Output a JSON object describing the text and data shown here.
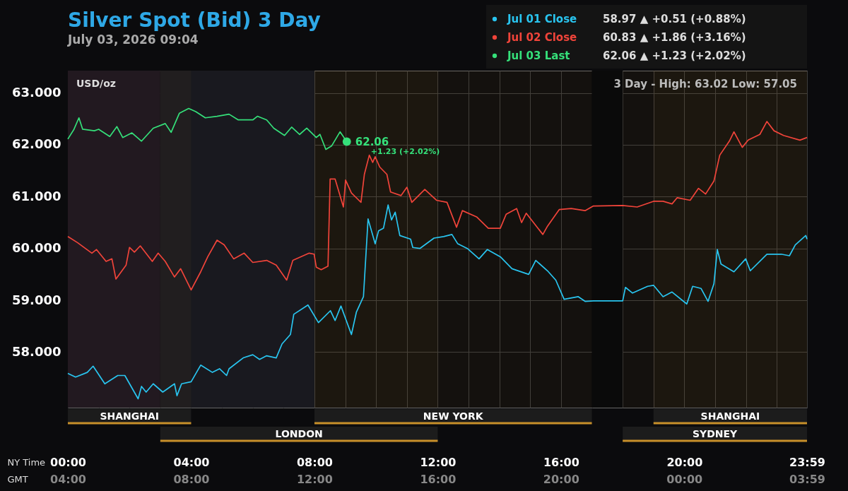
{
  "chart_data": {
    "type": "line",
    "title": "Silver Spot (Bid) 3 Day",
    "subtitle": "July 03, 2026 09:04",
    "ylabel": "USD/oz",
    "xlabel": "NY Time",
    "x2label": "GMT",
    "xlim": [
      0,
      23.98
    ],
    "xticks": [
      {
        "value": 0,
        "label": "00:00"
      },
      {
        "value": 1,
        "label": null
      },
      {
        "value": 2,
        "label": null
      },
      {
        "value": 3,
        "label": null
      },
      {
        "value": 4,
        "label": "04:00"
      },
      {
        "value": 5,
        "label": null
      },
      {
        "value": 6,
        "label": null
      },
      {
        "value": 7,
        "label": null
      },
      {
        "value": 8,
        "label": "08:00"
      },
      {
        "value": 9,
        "label": null
      },
      {
        "value": 10,
        "label": null
      },
      {
        "value": 11,
        "label": null
      },
      {
        "value": 12,
        "label": "12:00"
      },
      {
        "value": 13,
        "label": null
      },
      {
        "value": 14,
        "label": null
      },
      {
        "value": 15,
        "label": null
      },
      {
        "value": 16,
        "label": "16:00"
      },
      {
        "value": 17,
        "label": null
      },
      {
        "value": 18,
        "label": null
      },
      {
        "value": 19,
        "label": null
      },
      {
        "value": 20,
        "label": "20:00"
      },
      {
        "value": 21,
        "label": null
      },
      {
        "value": 22,
        "label": null
      },
      {
        "value": 23,
        "label": null
      },
      {
        "value": 23.98,
        "label": "23:59"
      }
    ],
    "x2lim": [
      "2026-07-03T04:00",
      "2026-07-04T03:59"
    ],
    "x2ticks": [
      {
        "value": "2026-07-03T04:00",
        "label": "04:00"
      },
      {
        "value": "2026-07-03T08:00",
        "label": "08:00"
      },
      {
        "value": "2026-07-03T12:00",
        "label": "12:00"
      },
      {
        "value": "2026-07-03T16:00",
        "label": "16:00"
      },
      {
        "value": "2026-07-03T20:00",
        "label": "20:00"
      },
      {
        "value": "2026-07-04T00:00",
        "label": "00:00"
      },
      {
        "value": "2026-07-04T03:59",
        "label": "03:59"
      }
    ],
    "ylim": [
      56.93,
      63.43
    ],
    "yticks": [
      {
        "value": 58,
        "label": "58.000"
      },
      {
        "value": 59,
        "label": "59.000"
      },
      {
        "value": 60,
        "label": "60.000"
      },
      {
        "value": 61,
        "label": "61.000"
      },
      {
        "value": 62,
        "label": "62.000"
      },
      {
        "value": 63,
        "label": "63.000"
      }
    ],
    "grid": true,
    "legend": "top right",
    "marker": "none",
    "line_style": "solid",
    "series": [
      {
        "name": "Jul 01 Close",
        "color": "#29c5f0",
        "x": [
          0,
          0.25,
          0.63,
          0.82,
          1.2,
          1.62,
          1.85,
          2.28,
          2.39,
          2.54,
          2.77,
          3.08,
          3.46,
          3.54,
          3.69,
          4.0,
          4.31,
          4.69,
          4.92,
          5.15,
          5.23,
          5.69,
          6.0,
          6.22,
          6.45,
          6.76,
          6.95,
          7.22,
          7.33,
          7.79,
          8.13,
          8.52,
          8.67,
          8.86,
          9.2,
          9.36,
          9.59,
          9.74,
          9.97,
          10.08,
          10.24,
          10.39,
          10.5,
          10.62,
          10.77,
          11.12,
          11.19,
          11.42,
          11.88,
          12.19,
          12.46,
          12.65,
          12.96,
          13.34,
          13.61,
          14.03,
          14.41,
          14.95,
          15.18,
          15.56,
          15.83,
          16.1,
          16.56,
          16.78,
          17.05,
          18.0,
          18.09,
          18.32,
          18.81,
          19.0,
          19.31,
          19.6,
          20.08,
          20.27,
          20.54,
          20.77,
          20.96,
          21.07,
          21.19,
          21.61,
          21.99,
          22.14,
          22.68,
          23.14,
          23.41,
          23.6,
          23.94,
          23.98
        ],
        "values": [
          57.59,
          57.52,
          57.61,
          57.73,
          57.39,
          57.55,
          57.55,
          57.1,
          57.34,
          57.23,
          57.39,
          57.23,
          57.39,
          57.16,
          57.39,
          57.43,
          57.75,
          57.61,
          57.68,
          57.55,
          57.68,
          57.89,
          57.95,
          57.86,
          57.93,
          57.89,
          58.16,
          58.34,
          58.73,
          58.91,
          58.57,
          58.8,
          58.61,
          58.89,
          58.34,
          58.77,
          59.07,
          60.57,
          60.09,
          60.34,
          60.39,
          60.84,
          60.55,
          60.7,
          60.25,
          60.18,
          60.02,
          60.0,
          60.2,
          60.23,
          60.27,
          60.09,
          60.0,
          59.8,
          59.98,
          59.84,
          59.61,
          59.5,
          59.77,
          59.57,
          59.39,
          59.02,
          59.07,
          58.98,
          58.99,
          58.99,
          59.25,
          59.14,
          59.27,
          59.29,
          59.07,
          59.16,
          58.93,
          59.27,
          59.23,
          58.98,
          59.32,
          59.98,
          59.7,
          59.55,
          59.8,
          59.57,
          59.89,
          59.89,
          59.86,
          60.07,
          60.25,
          60.18
        ]
      },
      {
        "name": "Jul 02 Close",
        "color": "#f0443a",
        "x": [
          0,
          0.32,
          0.78,
          0.93,
          1.24,
          1.43,
          1.56,
          1.89,
          2.0,
          2.16,
          2.35,
          2.74,
          2.93,
          3.16,
          3.46,
          3.66,
          4.0,
          4.31,
          4.54,
          4.84,
          5.07,
          5.38,
          5.72,
          6.0,
          6.45,
          6.76,
          7.1,
          7.3,
          7.83,
          7.99,
          8.06,
          8.22,
          8.44,
          8.51,
          8.67,
          8.94,
          9.01,
          9.2,
          9.51,
          9.62,
          9.78,
          9.89,
          9.97,
          10.12,
          10.35,
          10.47,
          10.81,
          11.0,
          11.16,
          11.58,
          11.96,
          12.3,
          12.61,
          12.8,
          13.26,
          13.64,
          14.03,
          14.22,
          14.56,
          14.72,
          14.87,
          15.41,
          15.56,
          15.94,
          16.33,
          16.78,
          17.05,
          18.0,
          18.47,
          19.0,
          19.31,
          19.6,
          19.77,
          20.19,
          20.46,
          20.69,
          20.96,
          21.15,
          21.46,
          21.61,
          21.88,
          22.07,
          22.45,
          22.68,
          22.91,
          23.22,
          23.75,
          23.98
        ],
        "values": [
          60.23,
          60.11,
          59.91,
          59.98,
          59.75,
          59.8,
          59.41,
          59.68,
          60.02,
          59.93,
          60.05,
          59.75,
          59.91,
          59.75,
          59.45,
          59.61,
          59.2,
          59.55,
          59.84,
          60.16,
          60.07,
          59.8,
          59.91,
          59.73,
          59.77,
          59.68,
          59.39,
          59.77,
          59.91,
          59.89,
          59.64,
          59.59,
          59.66,
          61.34,
          61.34,
          60.8,
          61.32,
          61.07,
          60.89,
          61.43,
          61.8,
          61.66,
          61.77,
          61.57,
          61.43,
          61.09,
          61.02,
          61.18,
          60.89,
          61.14,
          60.93,
          60.89,
          60.41,
          60.73,
          60.61,
          60.39,
          60.39,
          60.66,
          60.77,
          60.5,
          60.68,
          60.27,
          60.43,
          60.75,
          60.77,
          60.73,
          60.82,
          60.83,
          60.8,
          60.91,
          60.91,
          60.86,
          60.98,
          60.93,
          61.16,
          61.05,
          61.3,
          61.8,
          62.07,
          62.25,
          61.95,
          62.09,
          62.2,
          62.45,
          62.27,
          62.18,
          62.09,
          62.14
        ]
      },
      {
        "name": "Jul 03 Last",
        "color": "#35e07a",
        "x": [
          0,
          0.2,
          0.36,
          0.48,
          0.86,
          1.0,
          1.36,
          1.59,
          1.78,
          2.08,
          2.39,
          2.77,
          3.16,
          3.35,
          3.62,
          3.92,
          4.15,
          4.46,
          4.84,
          5.23,
          5.53,
          6.0,
          6.15,
          6.45,
          6.68,
          7.03,
          7.26,
          7.52,
          7.75,
          8.06,
          8.18,
          8.37,
          8.56,
          8.83,
          9.05
        ],
        "values": [
          62.11,
          62.3,
          62.52,
          62.3,
          62.27,
          62.3,
          62.16,
          62.35,
          62.14,
          62.23,
          62.07,
          62.32,
          62.41,
          62.24,
          62.61,
          62.7,
          62.64,
          62.52,
          62.55,
          62.59,
          62.48,
          62.48,
          62.55,
          62.48,
          62.32,
          62.18,
          62.34,
          62.2,
          62.32,
          62.14,
          62.2,
          61.91,
          61.98,
          62.25,
          62.06
        ]
      }
    ],
    "bands": [
      {
        "axis": "x",
        "from": 0,
        "to": 3,
        "color": "#1a1420"
      },
      {
        "axis": "x",
        "from": 3,
        "to": 8,
        "color": "#10141f"
      },
      {
        "axis": "x",
        "from": 17,
        "to": 18,
        "color": "#0a0a0a"
      },
      {
        "axis": "x",
        "from": 0,
        "to": 4,
        "label": "SHANGHAI",
        "color": "#c8902a"
      },
      {
        "axis": "x",
        "from": 8,
        "to": 17,
        "label": "NEW YORK",
        "color": "#c8902a"
      },
      {
        "axis": "x",
        "from": 19,
        "to": 23.98,
        "label": "SHANGHAI",
        "color": "#c8902a"
      },
      {
        "axis": "x",
        "from": 3,
        "to": 12,
        "label": "LONDON",
        "color": "#c8902a"
      },
      {
        "axis": "x",
        "from": 18,
        "to": 23.98,
        "label": "SYDNEY",
        "color": "#c8902a"
      }
    ],
    "annotations": [
      "58.97  ▲  +0.51   (+0.88%)",
      "60.83  ▲  +1.86   (+3.16%)",
      "62.06  ▲  +1.23   (+2.02%)",
      "3 Day - High: 63.02  Low: 57.05",
      "62.06",
      "+1.23 (+2.02%)"
    ]
  }
}
